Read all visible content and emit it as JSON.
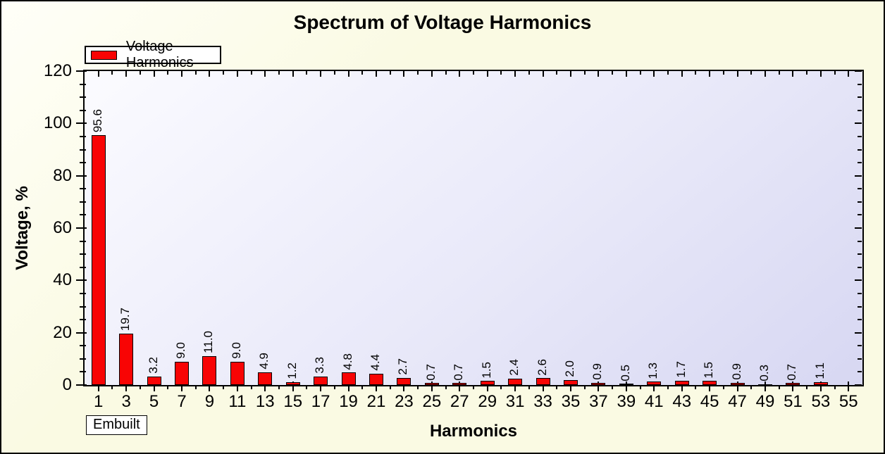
{
  "title": "Spectrum of Voltage Harmonics",
  "legend": {
    "label": "Voltage Harmonics"
  },
  "footer_badge": "Embuilt",
  "chart_data": {
    "type": "bar",
    "title": "Spectrum of Voltage Harmonics",
    "xlabel": "Harmonics",
    "ylabel": "Voltage, %",
    "x": [
      1,
      3,
      5,
      7,
      9,
      11,
      13,
      15,
      17,
      19,
      21,
      23,
      25,
      27,
      29,
      31,
      33,
      35,
      37,
      39,
      41,
      43,
      45,
      47,
      49,
      51,
      53
    ],
    "values": [
      95.6,
      19.7,
      3.2,
      9.0,
      11.0,
      9.0,
      4.9,
      1.2,
      3.3,
      4.8,
      4.4,
      2.7,
      0.7,
      0.7,
      1.5,
      2.4,
      2.6,
      2.0,
      0.9,
      0.5,
      1.3,
      1.7,
      1.5,
      0.9,
      0.3,
      0.7,
      1.1
    ],
    "value_label_decimals": 1,
    "x_tick_labels": [
      1,
      3,
      5,
      7,
      9,
      11,
      13,
      15,
      17,
      19,
      21,
      23,
      25,
      27,
      29,
      31,
      33,
      35,
      37,
      39,
      41,
      43,
      45,
      47,
      49,
      51,
      53,
      55
    ],
    "x_axis_range": [
      0,
      56
    ],
    "x_minor_step": 1,
    "ylim": [
      0,
      120
    ],
    "y_major_ticks": [
      0,
      20,
      40,
      60,
      80,
      100,
      120
    ],
    "y_minor_step": 5,
    "grid": false,
    "legend_entries": [
      "Voltage Harmonics"
    ],
    "legend_position": "top-left",
    "colors": {
      "bar_fill": "#f80404",
      "bar_border": "#000000",
      "axis": "#000000",
      "text": "#000000",
      "page_background": "#fafae3",
      "page_background_highlight": "#fffff8",
      "plot_gradient": [
        "#fbfbff",
        "#e9e9f9",
        "#d7d7f2"
      ]
    }
  }
}
